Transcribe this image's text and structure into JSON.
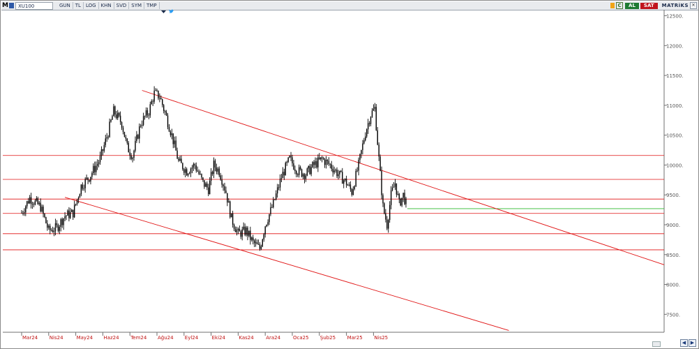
{
  "toolbar": {
    "logo": "M",
    "symbol": "XU100",
    "items": [
      "GUN",
      "TL",
      "LOG",
      "KHN",
      "SVD",
      "SYM",
      "TMP"
    ],
    "right": {
      "c_label": "C",
      "al_label": "AL",
      "sat_label": "SAT",
      "brand": "MATRiKS"
    }
  },
  "icons": {
    "menu": "menu-icon",
    "dropdown": "dropdown-icon",
    "twitter": "twitter-icon",
    "pin": "pin-icon",
    "close": "close-icon",
    "scroll_left": "arrow-left-icon",
    "scroll_right": "arrow-right-icon"
  },
  "colors": {
    "up": "#000000",
    "trend": "#e01010",
    "level": "#e01010",
    "current": "#2fb82f",
    "axis": "#555555"
  },
  "chart_data": {
    "type": "candlestick",
    "symbol": "XU100",
    "y_ticks": [
      "12500.",
      "12000.",
      "11500.",
      "11000.",
      "10500.",
      "10000.",
      "9500.",
      "9000.",
      "8500.",
      "8000.",
      "7500."
    ],
    "x_ticks": [
      "Mar24",
      "Nis24",
      "May24",
      "Haz24",
      "Tem24",
      "Ağu24",
      "Eyl24",
      "Eki24",
      "Kas24",
      "Ara24",
      "Oca25",
      "Şub25",
      "Mar25",
      "Nis25"
    ],
    "ylim": [
      7200,
      12600
    ],
    "horizontal_levels": [
      10160,
      9760,
      9430,
      9190,
      8850,
      8580
    ],
    "current_level": 9270,
    "trendlines": [
      {
        "name": "upper",
        "from": [
          "Tem24",
          11250
        ],
        "to": [
          "end",
          8330
        ]
      },
      {
        "name": "lower",
        "from": [
          "Nis24",
          9460
        ],
        "to": [
          "Mar25",
          7230
        ]
      }
    ],
    "close_path": [
      [
        0.0,
        9200
      ],
      [
        0.3,
        9450
      ],
      [
        0.7,
        9300
      ],
      [
        1.0,
        8900
      ],
      [
        1.3,
        8950
      ],
      [
        1.6,
        9150
      ],
      [
        1.9,
        9200
      ],
      [
        2.2,
        9650
      ],
      [
        2.5,
        9800
      ],
      [
        2.9,
        10100
      ],
      [
        3.2,
        10550
      ],
      [
        3.4,
        10900
      ],
      [
        3.7,
        10700
      ],
      [
        3.9,
        10300
      ],
      [
        4.1,
        10150
      ],
      [
        4.4,
        10700
      ],
      [
        4.7,
        10900
      ],
      [
        4.9,
        11200
      ],
      [
        5.1,
        11150
      ],
      [
        5.35,
        10800
      ],
      [
        5.55,
        10500
      ],
      [
        5.8,
        10050
      ],
      [
        6.1,
        9900
      ],
      [
        6.4,
        10000
      ],
      [
        6.7,
        9700
      ],
      [
        6.9,
        9600
      ],
      [
        7.1,
        10000
      ],
      [
        7.3,
        9900
      ],
      [
        7.55,
        9550
      ],
      [
        7.75,
        9100
      ],
      [
        8.0,
        8850
      ],
      [
        8.3,
        8900
      ],
      [
        8.55,
        8700
      ],
      [
        8.8,
        8600
      ],
      [
        9.0,
        9000
      ],
      [
        9.3,
        9350
      ],
      [
        9.6,
        9800
      ],
      [
        9.9,
        10100
      ],
      [
        10.2,
        9900
      ],
      [
        10.5,
        9850
      ],
      [
        10.8,
        10000
      ],
      [
        11.1,
        10100
      ],
      [
        11.4,
        10000
      ],
      [
        11.7,
        9850
      ],
      [
        12.0,
        9700
      ],
      [
        12.2,
        9550
      ],
      [
        12.45,
        10000
      ],
      [
        12.7,
        10550
      ],
      [
        12.9,
        10850
      ],
      [
        13.05,
        10950
      ],
      [
        13.2,
        10100
      ],
      [
        13.35,
        9300
      ],
      [
        13.5,
        9000
      ],
      [
        13.65,
        9500
      ],
      [
        13.8,
        9700
      ],
      [
        13.95,
        9350
      ],
      [
        14.1,
        9500
      ],
      [
        14.25,
        9280
      ]
    ]
  }
}
